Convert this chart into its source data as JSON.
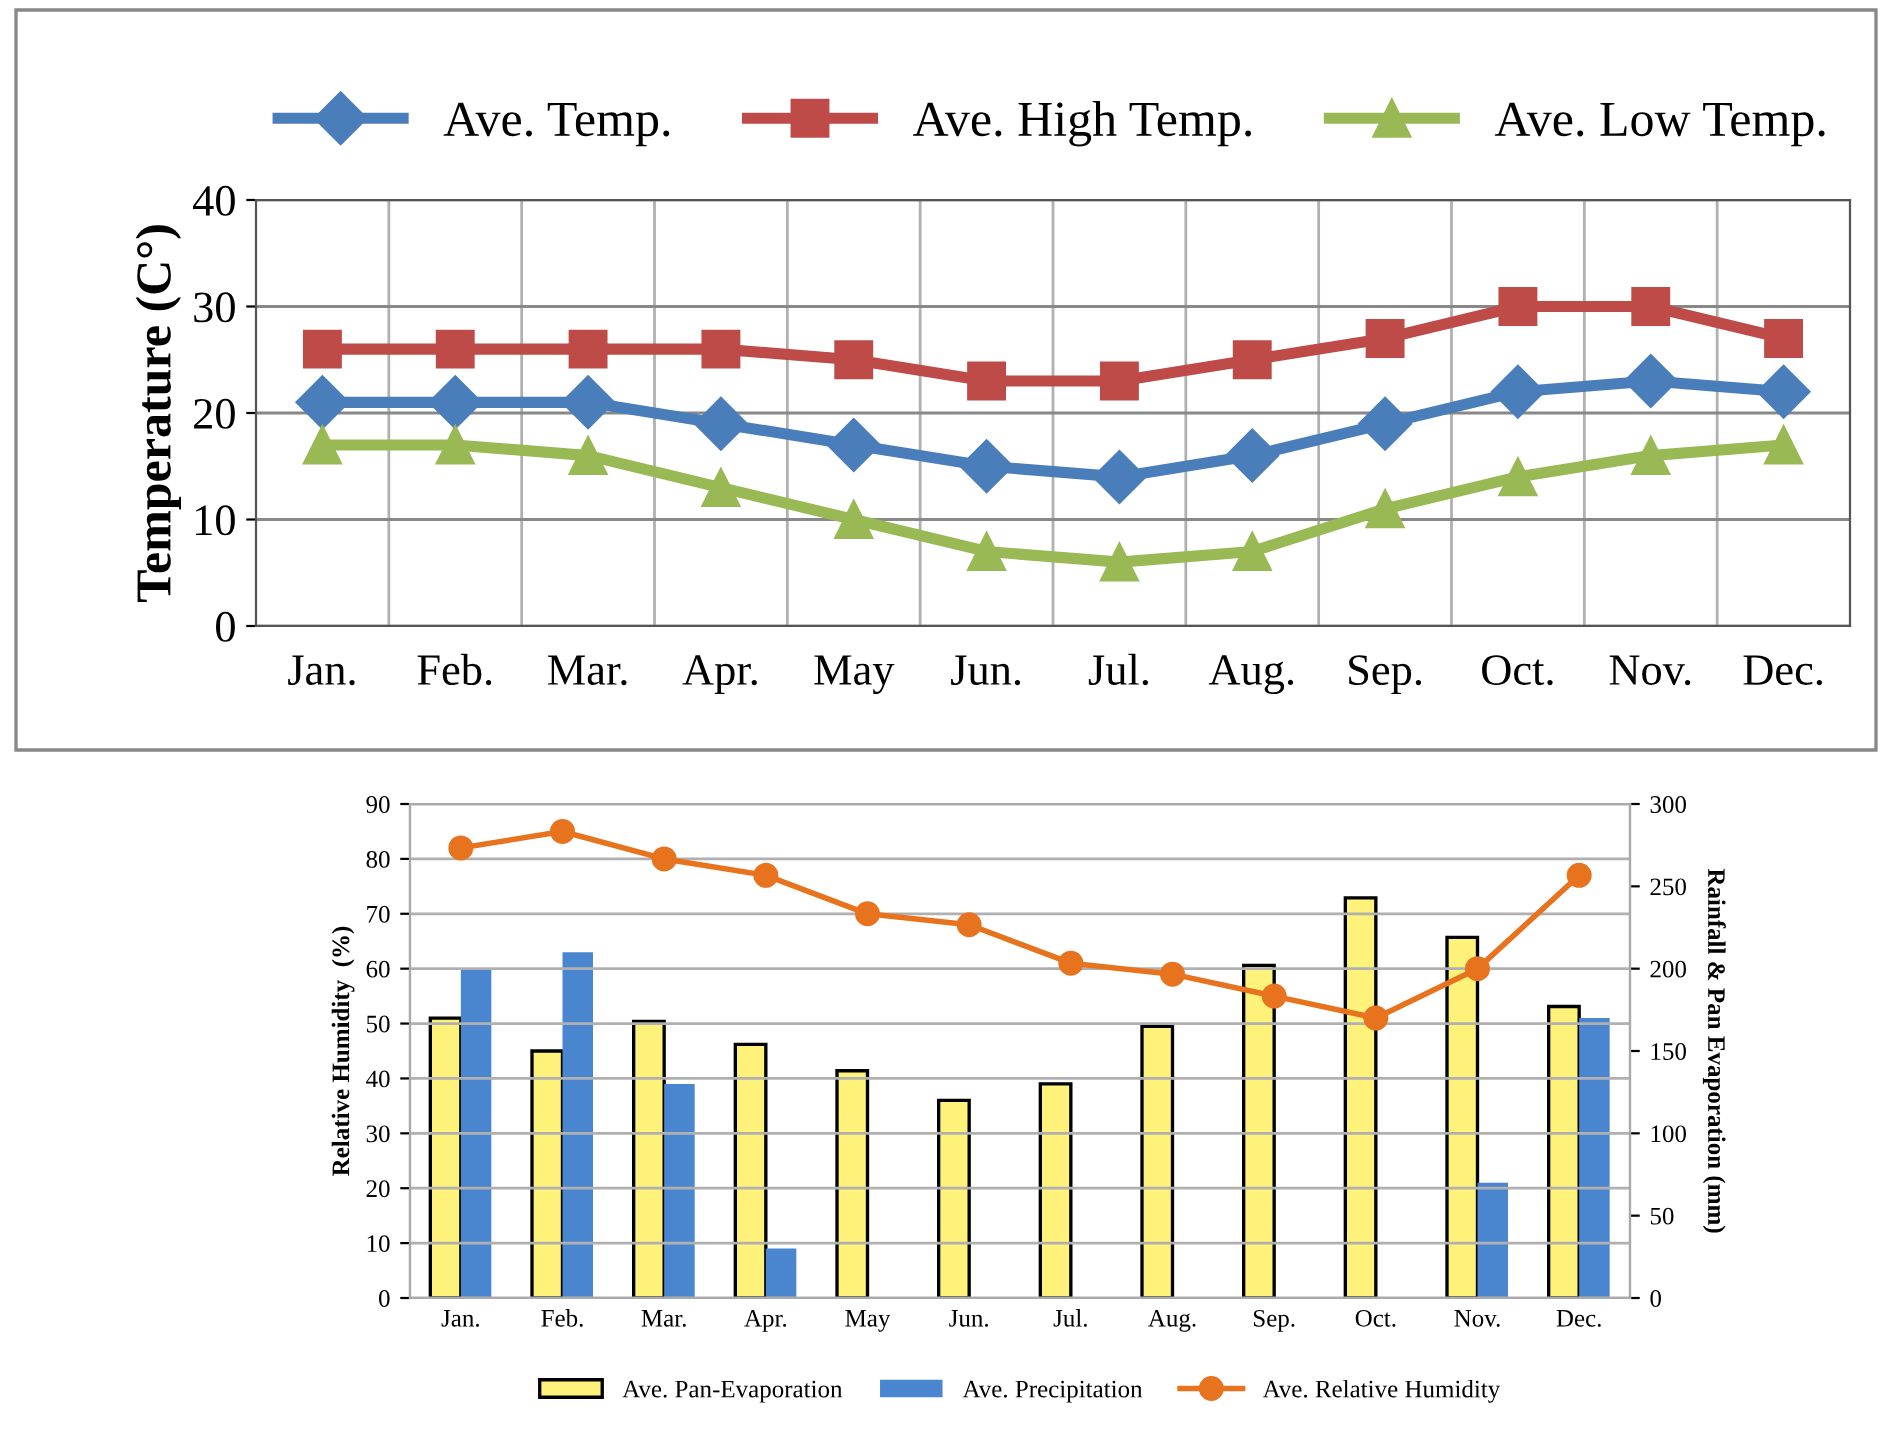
{
  "chart_data": [
    {
      "type": "line",
      "ylabel": "Temperature (C°)",
      "categories": [
        "Jan.",
        "Feb.",
        "Mar.",
        "Apr.",
        "May",
        "Jun.",
        "Jul.",
        "Aug.",
        "Sep.",
        "Oct.",
        "Nov.",
        "Dec."
      ],
      "ylim": [
        0,
        40
      ],
      "yticks": [
        0,
        10,
        20,
        30,
        40
      ],
      "grid": true,
      "legend": "top",
      "series": [
        {
          "name": "Ave. Temp.",
          "color": "#4a7ebb",
          "marker": "diamond",
          "values": [
            21,
            21,
            21,
            19,
            17,
            15,
            14,
            16,
            19,
            22,
            23,
            22
          ]
        },
        {
          "name": "Ave. High Temp.",
          "color": "#be4b48",
          "marker": "square",
          "values": [
            26,
            26,
            26,
            26,
            25,
            23,
            23,
            25,
            27,
            30,
            30,
            27
          ]
        },
        {
          "name": "Ave. Low Temp.",
          "color": "#98b954",
          "marker": "triangle",
          "values": [
            17,
            17,
            16,
            13,
            10,
            7,
            6,
            7,
            11,
            14,
            16,
            17
          ]
        }
      ]
    },
    {
      "type": "bar",
      "ylabel": "Relative Humidity  (%)",
      "y2label": "Rainfall & Pan Evaporation (mm)",
      "categories": [
        "Jan.",
        "Feb.",
        "Mar.",
        "Apr.",
        "May",
        "Jun.",
        "Jul.",
        "Aug.",
        "Sep.",
        "Oct.",
        "Nov.",
        "Dec."
      ],
      "ylim": [
        0,
        90
      ],
      "yticks": [
        0,
        10,
        20,
        30,
        40,
        50,
        60,
        70,
        80,
        90
      ],
      "y2lim": [
        0,
        300
      ],
      "y2ticks": [
        0,
        50,
        100,
        150,
        200,
        250,
        300
      ],
      "grid": true,
      "legend": "bottom",
      "series": [
        {
          "name": "Ave. Pan-Evaporation",
          "type": "bar",
          "axis": "y2",
          "color": "#fff27a",
          "values": [
            170,
            150,
            168,
            154,
            138,
            120,
            130,
            165,
            202,
            243,
            219,
            177
          ]
        },
        {
          "name": "Ave. Precipitation",
          "type": "bar",
          "axis": "y2",
          "color": "#4a86d0",
          "values": [
            200,
            210,
            130,
            30,
            0,
            0,
            0,
            0,
            0,
            0,
            70,
            170
          ]
        },
        {
          "name": "Ave. Relative Humidity",
          "type": "line",
          "marker": "circle",
          "color": "#e8731e",
          "values": [
            82,
            85,
            80,
            77,
            70,
            68,
            61,
            59,
            55,
            51,
            60,
            77
          ]
        }
      ]
    }
  ]
}
